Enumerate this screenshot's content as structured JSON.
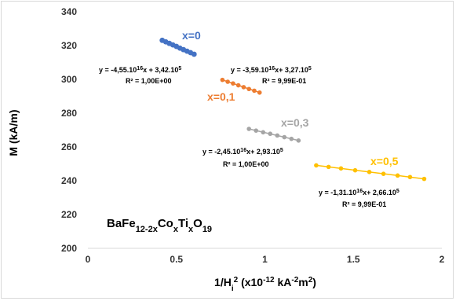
{
  "chart_data": {
    "type": "scatter",
    "title": "",
    "xlabel": {
      "main": "1/H",
      "sub": "i",
      "sup": "2",
      "rest1": " (x10",
      "sup2": "-12",
      "rest2": " kA",
      "sup3": "-2",
      "rest3": "m",
      "sup4": "2",
      "rest4": ")"
    },
    "ylabel": "M (kA/m)",
    "xlim": [
      0,
      2
    ],
    "ylim": [
      200,
      340
    ],
    "xticks": [
      "0",
      "0.5",
      "1",
      "1.5",
      "2"
    ],
    "yticks": [
      "200",
      "220",
      "240",
      "260",
      "280",
      "300",
      "320",
      "340"
    ],
    "grid": false,
    "formula": {
      "a": "BaFe",
      "s1": "12-2x",
      "b": "Co",
      "s2": "x",
      "c": "Ti",
      "s3": "x",
      "d": "O",
      "s4": "19"
    },
    "series": [
      {
        "name": "x=0",
        "color": "#4472c4",
        "x": [
          0.42,
          0.44,
          0.46,
          0.48,
          0.5,
          0.52,
          0.54,
          0.56,
          0.58,
          0.6
        ],
        "y": [
          323.1,
          322.2,
          321.3,
          320.4,
          319.5,
          318.5,
          317.6,
          316.7,
          315.8,
          314.9
        ],
        "trend": [
          0.42,
          0.6
        ],
        "equation": {
          "p1": "y = -4,55.10",
          "e1": "16",
          "p2": "x + 3,42.10",
          "e2": "5"
        },
        "r2": "R² = 1,00E+00"
      },
      {
        "name": "x=0,1",
        "color": "#ed7d31",
        "x": [
          0.76,
          0.79,
          0.82,
          0.85,
          0.88,
          0.91,
          0.94,
          0.97
        ],
        "y": [
          299.7,
          298.6,
          297.6,
          296.5,
          295.4,
          294.3,
          293.3,
          292.2
        ],
        "trend": [
          0.76,
          0.97
        ],
        "equation": {
          "p1": "y = -3,59.10",
          "e1": "16",
          "p2": "x+ 3,27.10",
          "e2": "5"
        },
        "r2": "R² = 9,99E-01"
      },
      {
        "name": "x=0,3",
        "color": "#a5a5a5",
        "x": [
          0.91,
          0.95,
          0.99,
          1.03,
          1.07,
          1.11,
          1.15,
          1.19
        ],
        "y": [
          270.7,
          269.7,
          268.7,
          267.8,
          266.8,
          265.8,
          264.8,
          263.8
        ],
        "trend": [
          0.91,
          1.19
        ],
        "equation": {
          "p1": "y = -2,45.10",
          "e1": "16",
          "p2": "x+ 2,93.10",
          "e2": "5"
        },
        "r2": "R² = 1,00E+00"
      },
      {
        "name": "x=0,5",
        "color": "#ffc000",
        "x": [
          1.29,
          1.36,
          1.43,
          1.51,
          1.59,
          1.67,
          1.75,
          1.82,
          1.9
        ],
        "y": [
          249.1,
          248.2,
          247.3,
          246.2,
          245.2,
          244.1,
          243.1,
          242.2,
          241.1
        ],
        "trend": [
          1.29,
          1.9
        ],
        "equation": {
          "p1": "y = -1,31.10",
          "e1": "16",
          "p2": "x+ 2,66.10",
          "e2": "5"
        },
        "r2": "R² = 9,99E-01"
      }
    ]
  }
}
